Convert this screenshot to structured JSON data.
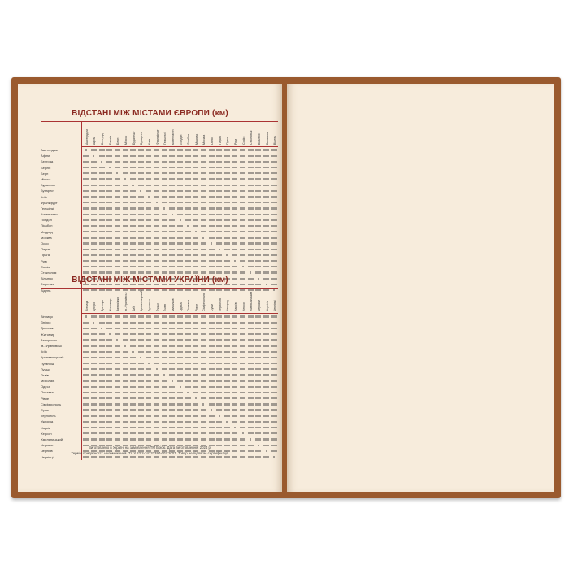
{
  "colors": {
    "cover": "#9a5a2e",
    "page": "#f7ecdc",
    "title": "#8b2a22"
  },
  "europe": {
    "title": "ВІДСТАНІ МІЖ МІСТАМИ ЄВРОПИ (км)",
    "cities": [
      "Амстердам",
      "Афіни",
      "Белград",
      "Берлін",
      "Берн",
      "Мінськ",
      "Будапешт",
      "Бухарест",
      "Київ",
      "Франкфурт",
      "Гельсінкі",
      "Копенгаген",
      "Лондон",
      "Лісабон",
      "Мадрид",
      "Москва",
      "Осло",
      "Париж",
      "Прага",
      "Рим",
      "Софія",
      "Стокгольм",
      "Вільнюс",
      "Варшава",
      "Відень"
    ]
  },
  "ukraine": {
    "title": "ВІДСТАНІ МІЖ МІСТАМИ УКРАЇНИ (км)",
    "cities": [
      "Вінниця",
      "Дніпро",
      "Донецьк",
      "Житомир",
      "Запоріжжя",
      "Ів.-Франківськ",
      "Київ",
      "Кропивницький",
      "Луганськ",
      "Луцьк",
      "Львів",
      "Миколаїв",
      "Одеса",
      "Полтава",
      "Рівне",
      "Сімферополь",
      "Суми",
      "Тернопіль",
      "Ужгород",
      "Харків",
      "Херсон",
      "Хмельницький",
      "Черкаси",
      "Чернігів",
      "Чернівці"
    ]
  },
  "footer": {
    "line1": "Виготовлено в Україні на замовлення ТМ Бріскі. Дата виготовлення: 2024 р.",
    "line2": "Термін придатності: необмежений. ТУ У 22.2-34733397-002:2007. Товар не підлягає сертифікації."
  }
}
